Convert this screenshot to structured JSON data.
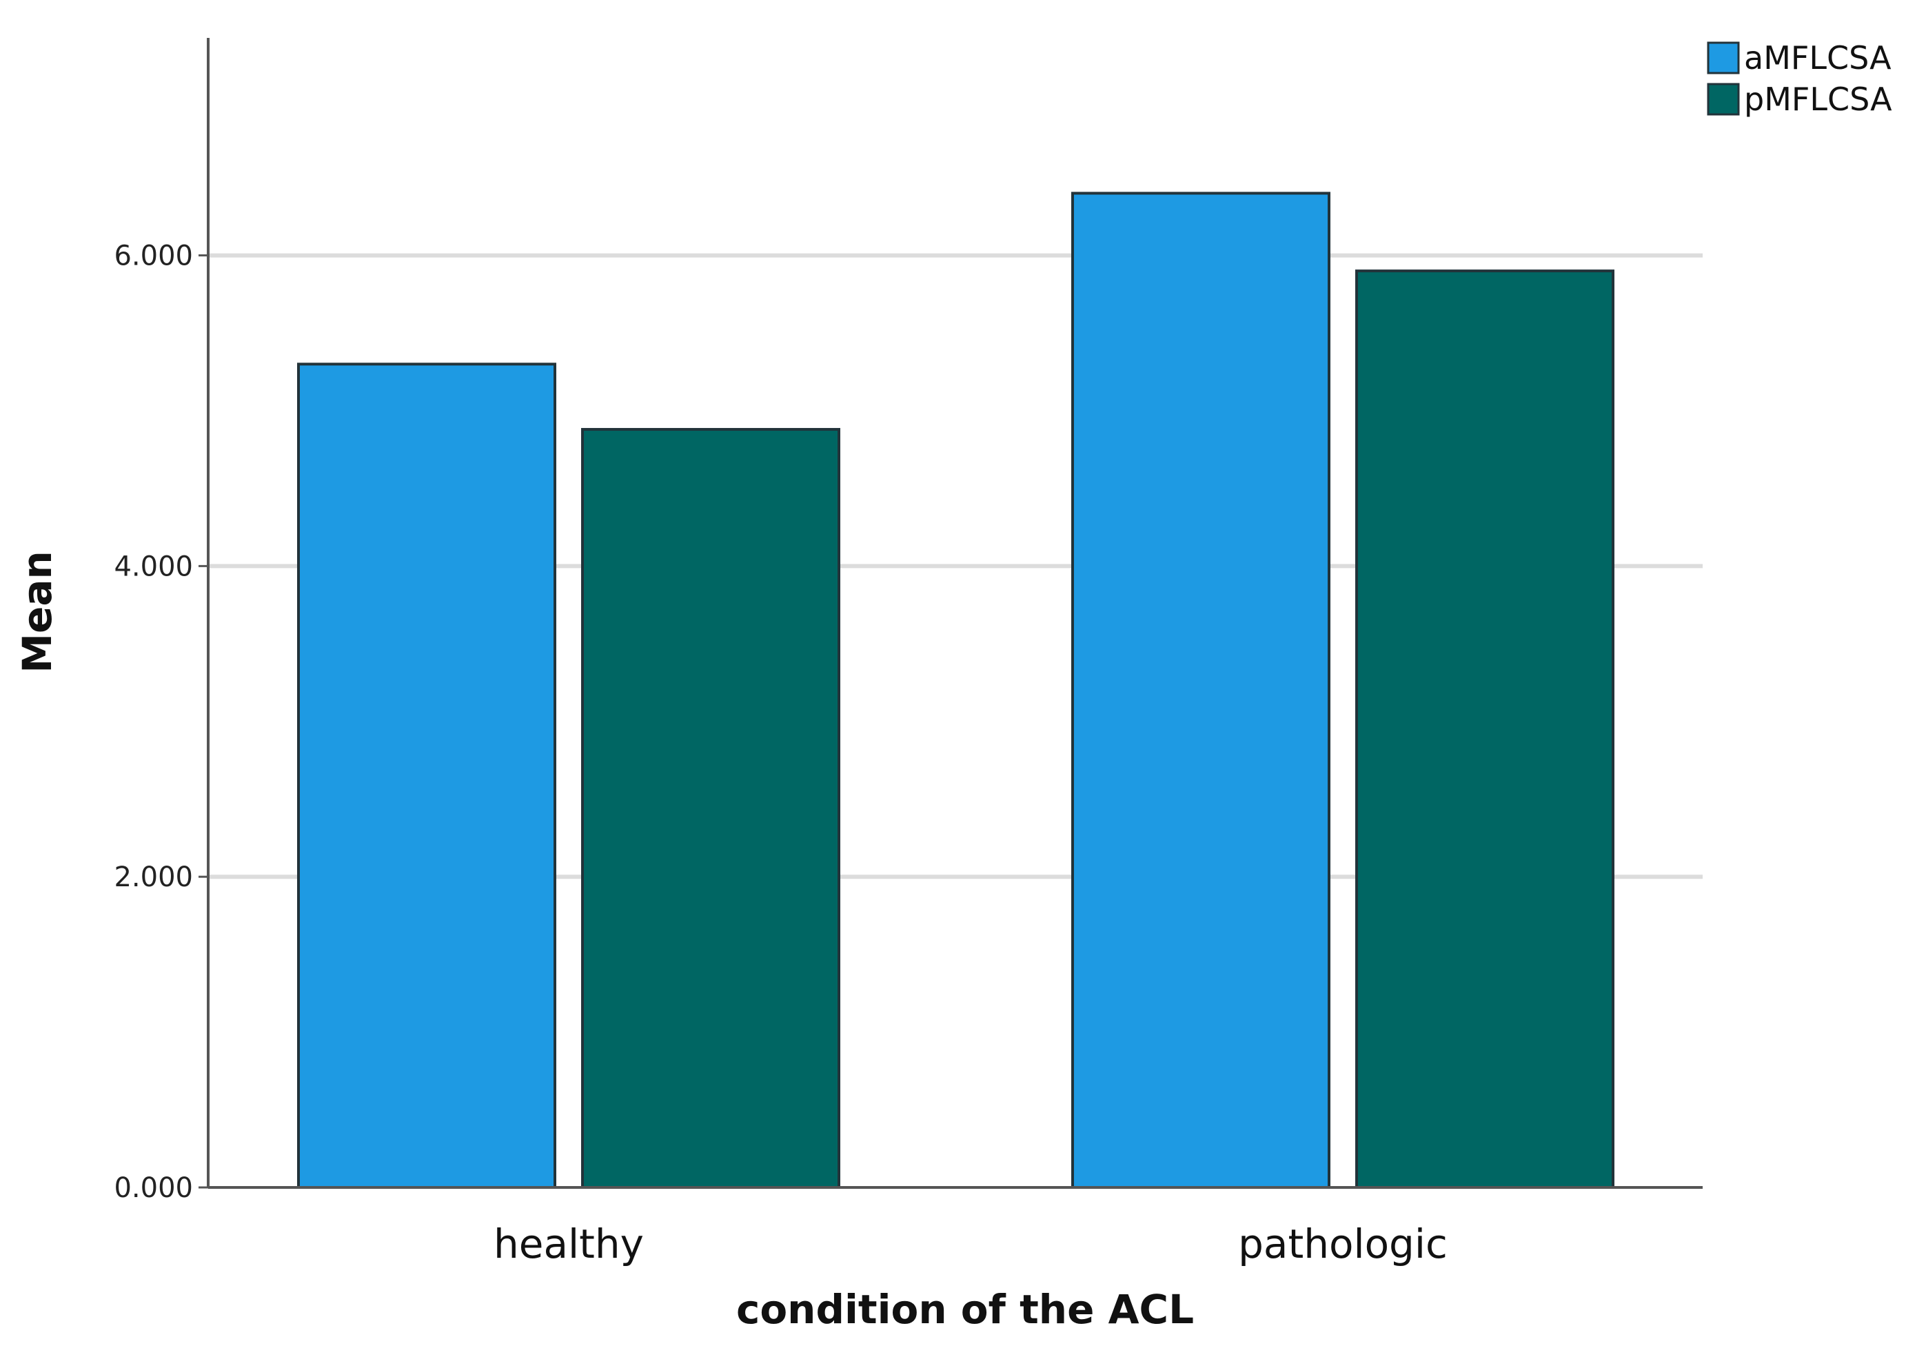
{
  "chart_data": {
    "type": "bar",
    "categories": [
      "healthy",
      "pathologic"
    ],
    "series": [
      {
        "name": "aMFLCSA",
        "values": [
          5.3,
          6.4
        ],
        "color": "#1E9AE3"
      },
      {
        "name": "pMFLCSA",
        "values": [
          4.88,
          5.9
        ],
        "color": "#006663"
      }
    ],
    "xlabel": "condition of the ACL",
    "ylabel": "Mean",
    "ylim": [
      0,
      7.4
    ],
    "yticks": [
      0,
      2,
      4,
      6
    ],
    "ytick_labels": [
      "0.000",
      "2.000",
      "4.000",
      "6.000"
    ],
    "grid": true,
    "legend_position": "top-right"
  }
}
